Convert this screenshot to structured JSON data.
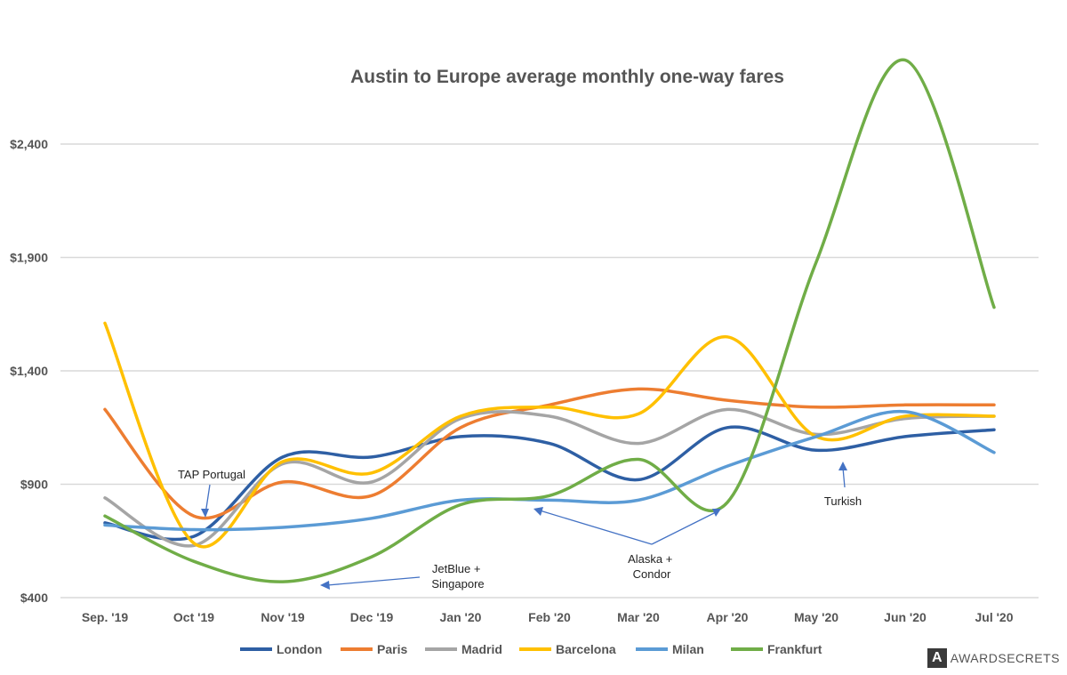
{
  "chart_data": {
    "type": "line",
    "title": "Austin to Europe average monthly one-way fares",
    "categories": [
      "Sep. '19",
      "Oct '19",
      "Nov '19",
      "Dec '19",
      "Jan '20",
      "Feb '20",
      "Mar '20",
      "Apr '20",
      "May '20",
      "Jun '20",
      "Jul '20"
    ],
    "ylim": [
      400,
      2400
    ],
    "yticks": [
      400,
      900,
      1400,
      1900,
      2400
    ],
    "ytick_labels": [
      "$400",
      "$900",
      "$1,400",
      "$1,900",
      "$2,400"
    ],
    "grid": true,
    "legend_position": "bottom",
    "series": [
      {
        "name": "London",
        "color": "#2e5fa4",
        "values": [
          730,
          670,
          1020,
          1020,
          1110,
          1080,
          920,
          1150,
          1050,
          1110,
          1140
        ]
      },
      {
        "name": "Paris",
        "color": "#ed7d31",
        "values": [
          1230,
          760,
          910,
          850,
          1150,
          1250,
          1320,
          1270,
          1240,
          1250,
          1250
        ]
      },
      {
        "name": "Madrid",
        "color": "#a5a5a5",
        "values": [
          840,
          630,
          990,
          910,
          1190,
          1200,
          1080,
          1230,
          1120,
          1190,
          1200
        ]
      },
      {
        "name": "Barcelona",
        "color": "#ffc000",
        "values": [
          1610,
          640,
          1000,
          950,
          1200,
          1240,
          1210,
          1550,
          1110,
          1200,
          1200
        ]
      },
      {
        "name": "Milan",
        "color": "#5b9bd5",
        "values": [
          720,
          700,
          710,
          750,
          830,
          830,
          830,
          980,
          1110,
          1220,
          1040
        ]
      },
      {
        "name": "Frankfurt",
        "color": "#70ad47",
        "values": [
          760,
          560,
          470,
          580,
          810,
          850,
          1010,
          820,
          1880,
          2770,
          1680
        ]
      }
    ],
    "annotations": [
      {
        "text": [
          "TAP Portugal"
        ]
      },
      {
        "text": [
          "JetBlue +",
          "Singapore"
        ]
      },
      {
        "text": [
          "Alaska +",
          "Condor"
        ]
      },
      {
        "text": [
          "Turkish"
        ]
      }
    ]
  },
  "branding": {
    "mark": "A",
    "text": "AWARDSECRETS"
  }
}
